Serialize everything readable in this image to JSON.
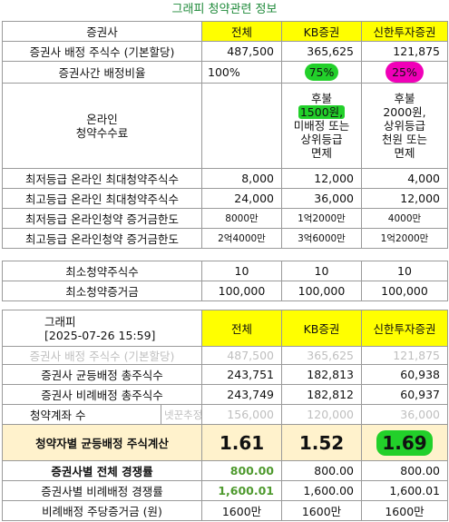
{
  "title": "그래피 청약관련 정보",
  "t1": {
    "h": [
      "증권사",
      "전체",
      "KB증권",
      "신한투자증권"
    ],
    "r1": [
      "증권사 배정 주식수 (기본할당)",
      "487,500",
      "365,625",
      "121,875"
    ],
    "r2": [
      "증권사간 배정비율",
      "100%",
      "75%",
      "25%"
    ],
    "r3_label_line1": "온라인",
    "r3_label_line2": "청약수수료",
    "r3_kb": [
      "후불",
      "1500원,",
      "미배정 또는",
      "상위등급",
      "면제"
    ],
    "r3_sh": [
      "후불",
      "2000원,",
      "상위등급",
      "천원 또는",
      "면제"
    ],
    "r4": [
      "최저등급 온라인 최대청약주식수",
      "8,000",
      "12,000",
      "4,000"
    ],
    "r5": [
      "최고등급 온라인 최대청약주식수",
      "24,000",
      "36,000",
      "12,000"
    ],
    "r6": [
      "최저등급 온라인청약 증거금한도",
      "8000만",
      "1억2000만",
      "4000만"
    ],
    "r7": [
      "최고등급 온라인청약 증거금한도",
      "2억4000만",
      "3억6000만",
      "1억2000만"
    ]
  },
  "t2": {
    "r1": [
      "최소청약주식수",
      "10",
      "10",
      "10"
    ],
    "r2": [
      "최소청약증거금",
      "100,000",
      "100,000",
      "100,000"
    ]
  },
  "t3": {
    "h_line1": "그래피",
    "h_line2": "[2025-07-26 15:59]",
    "h": [
      "전체",
      "KB증권",
      "신한투자증권"
    ],
    "r1": [
      "증권사 배정 주식수 (기본할당)",
      "487,500",
      "365,625",
      "121,875"
    ],
    "r2": [
      "증권사 균등배정 총주식수",
      "243,751",
      "182,813",
      "60,938"
    ],
    "r3": [
      "증권사 비례배정 총주식수",
      "243,749",
      "182,812",
      "60,937"
    ],
    "r4_label": "청약계좌 수",
    "r4_note": "넷꾼추정",
    "r4": [
      "156,000",
      "120,000",
      "36,000"
    ],
    "r5": [
      "청약자별 균등배정 주식계산",
      "1.61",
      "1.52",
      "1.69"
    ],
    "r6": [
      "증권사별 전체 경쟁률",
      "800.00",
      "800.00",
      "800.00"
    ],
    "r7": [
      "증권사별 비례배정 경쟁률",
      "1,600.01",
      "1,600.00",
      "1,600.01"
    ],
    "r8": [
      "비례배정 주당증거금 (원)",
      "1600만",
      "1600만",
      "1600만"
    ]
  }
}
